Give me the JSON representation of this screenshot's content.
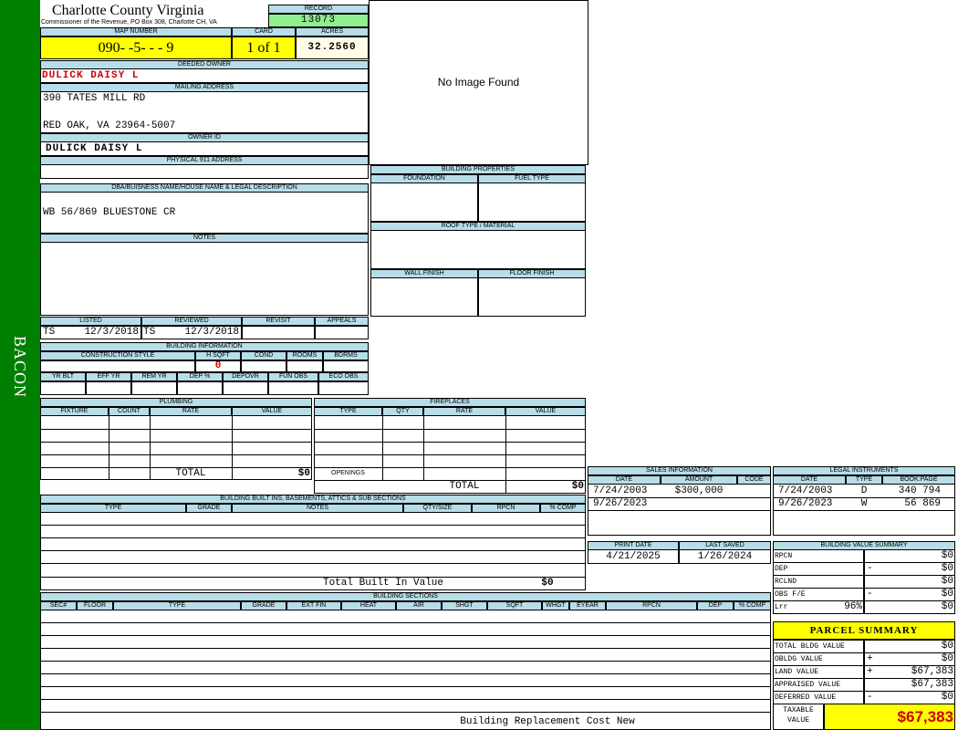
{
  "sidebar": {
    "label": "BACON"
  },
  "header": {
    "county": "Charlotte County Virginia",
    "office": "Commissioner of the Revenue, PO Box 308, Charlotte CH, VA",
    "record_label": "RECORD",
    "record": "13073",
    "map_number_label": "MAP NUMBER",
    "map_number": "090- -5- - - 9",
    "card_label": "CARD",
    "card": "1 of 1",
    "acres_label": "ACRES",
    "acres": "32.2560"
  },
  "photo": {
    "placeholder": "No Image Found"
  },
  "owner": {
    "deeded_label": "DEEDED OWNER",
    "deeded": "DULICK DAISY L",
    "mailing_label": "MAILING ADDRESS",
    "mailing": [
      "390 TATES MILL RD",
      "RED OAK, VA 23964-5007"
    ],
    "owner_id_label": "OWNER ID",
    "owner_id": "DULICK DAISY L",
    "physical_label": "PHYSICAL 911 ADDRESS",
    "legal_label": "DBA/BUISNESS NAME/HOUSE NAME & LEGAL DESCRIPTION",
    "legal": "WB 56/869 BLUESTONE CR",
    "notes_label": "NOTES"
  },
  "building_properties": {
    "title": "BUILDING PROPERTIES",
    "foundation": "FOUNDATION",
    "fuel_type": "FUEL TYPE",
    "roof": "ROOF TYPE / MATERIAL",
    "wall_finish": "WALL FINISH",
    "floor_finish": "FLOOR FINISH"
  },
  "review": {
    "headers": [
      "LISTED",
      "REVIEWED",
      "REVISIT",
      "APPEALS"
    ],
    "listed_by": "TS",
    "listed_date": "12/3/2018",
    "reviewed_by": "TS",
    "reviewed_date": "12/3/2018"
  },
  "building_info": {
    "title": "BUILDING INFORMATION",
    "headers1": [
      "CONSTRUCTION STYLE",
      "H SQFT",
      "COND",
      "ROOMS",
      "BDRMS"
    ],
    "h_sqft": "0",
    "headers2": [
      "YR BLT",
      "EFF YR",
      "REM YR",
      "DEP %",
      "DEPOVR",
      "FUN OBS",
      "ECO OBS"
    ]
  },
  "plumbing": {
    "title": "PLUMBING",
    "headers": [
      "FIXTURE",
      "COUNT",
      "RATE",
      "VALUE"
    ],
    "total_label": "TOTAL",
    "total": "$0"
  },
  "fireplaces": {
    "title": "FIREPLACES",
    "headers": [
      "TYPE",
      "QTY",
      "RATE",
      "VALUE"
    ],
    "openings_label": "OPENINGS",
    "total_label": "TOTAL",
    "total": "$0"
  },
  "built_ins": {
    "title": "BUILDING BUILT INS, BASEMENTS, ATTICS & SUB SECTIONS",
    "headers": [
      "TYPE",
      "GRADE",
      "NOTES",
      "QTY/SIZE",
      "RPCN",
      "% COMP"
    ],
    "total_label": "Total Built In Value",
    "total": "$0"
  },
  "sections": {
    "title": "BUILDING SECTIONS",
    "headers": [
      "SEC#",
      "FLOOR",
      "TYPE",
      "GRADE",
      "EXT FIN",
      "HEAT",
      "AIR",
      "SHGT",
      "SQFT",
      "WHGT",
      "EYEAR",
      "RPCN",
      "DEP",
      "% COMP"
    ],
    "total_label": "Building Replacement Cost New"
  },
  "sales": {
    "title": "SALES INFORMATION",
    "headers": [
      "DATE",
      "AMOUNT",
      "CODE"
    ],
    "rows": [
      {
        "date": "7/24/2003",
        "amount": "$300,000"
      },
      {
        "date": "9/26/2023"
      }
    ]
  },
  "legal_instruments": {
    "title": "LEGAL INSTRUMENTS",
    "headers": [
      "DATE",
      "TYPE",
      "BOOK:PAGE"
    ],
    "rows": [
      {
        "date": "7/24/2003",
        "type": "D",
        "book_page": "340 794"
      },
      {
        "date": "9/26/2023",
        "type": "W",
        "book_page": "56 869"
      }
    ]
  },
  "dates": {
    "headers": [
      "PRINT DATE",
      "LAST SAVED"
    ],
    "print_date": "4/21/2025",
    "last_saved": "1/26/2024"
  },
  "value_summary": {
    "title": "BUILDING VALUE SUMMARY",
    "rows": [
      {
        "label": "RPCN",
        "value": "$0"
      },
      {
        "label": "DEP",
        "sign": "-",
        "value": "$0"
      },
      {
        "label": "RCLND",
        "value": "$0"
      },
      {
        "label": "OBS F/E",
        "sign": "-",
        "value": "$0"
      },
      {
        "label": "Lrr",
        "pct": "96%",
        "value": "$0"
      }
    ]
  },
  "parcel_summary": {
    "title": "PARCEL SUMMARY",
    "rows": [
      {
        "label": "TOTAL BLDG VALUE",
        "value": "$0"
      },
      {
        "label": "OBLDG VALUE",
        "sign": "+",
        "value": "$0"
      },
      {
        "label": "LAND VALUE",
        "sign": "+",
        "value": "$67,383"
      },
      {
        "label": "APPRAISED VALUE",
        "value": "$67,383"
      },
      {
        "label": "DEFERRED VALUE",
        "sign": "-",
        "value": "$0"
      }
    ],
    "taxable_label": "TAXABLE VALUE",
    "taxable": "$67,383"
  }
}
